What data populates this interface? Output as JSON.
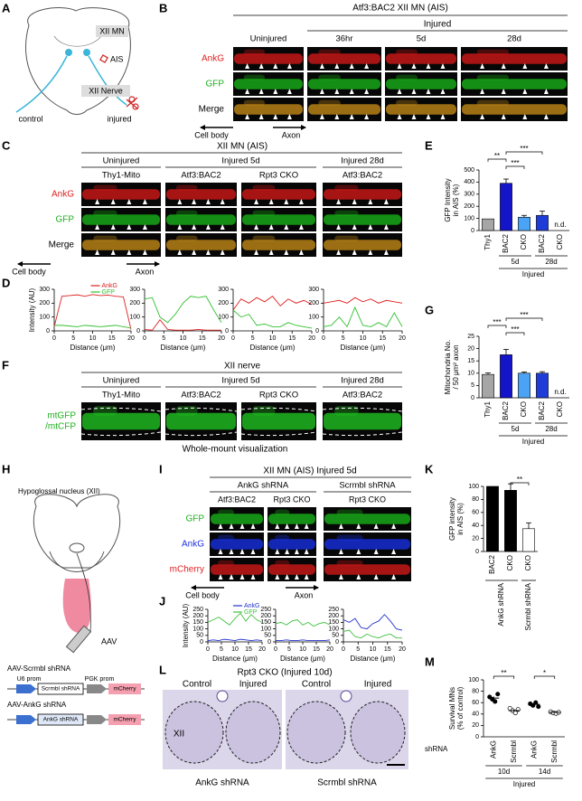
{
  "panels": {
    "A": {
      "letter": "A",
      "xii_mn": "XII MN",
      "ais": "AIS",
      "xii_nerve": "XII Nerve",
      "control": "control",
      "injured": "injured"
    },
    "B": {
      "letter": "B",
      "title": "Atf3:BAC2 XII MN (AIS)",
      "group": "Injured",
      "columns": [
        "Uninjured",
        "36hr",
        "5d",
        "28d"
      ],
      "rows": [
        "AnkG",
        "GFP",
        "Merge"
      ],
      "cell_body": "Cell body",
      "axon": "Axon"
    },
    "C": {
      "letter": "C",
      "title": "XII MN (AIS)",
      "groups": [
        "Uninjured",
        "Injured 5d",
        "Injured 28d"
      ],
      "columns": [
        "Thy1-Mito",
        "Atf3:BAC2",
        "Rpt3 CKO",
        "Atf3:BAC2"
      ],
      "rows": [
        "AnkG",
        "GFP",
        "Merge"
      ],
      "cell_body": "Cell body",
      "axon": "Axon"
    },
    "D": {
      "letter": "D"
    },
    "E": {
      "letter": "E"
    },
    "F": {
      "letter": "F",
      "title": "XII nerve",
      "groups": [
        "Uninjured",
        "Injured 5d",
        "Injured 28d"
      ],
      "columns": [
        "Thy1-Mito",
        "Atf3:BAC2",
        "Rpt3 CKO",
        "Atf3:BAC2"
      ],
      "row": [
        "mtGFP",
        "/mtCFP"
      ],
      "caption": "Whole-mount visualization"
    },
    "G": {
      "letter": "G"
    },
    "H": {
      "letter": "H",
      "nucleus": "Hypoglossal nucleus (XII)",
      "aav": "AAV",
      "constructs": [
        {
          "name": "AAV-Scrmbl shRNA",
          "promoters": [
            "U6 prom",
            "PGK prom"
          ],
          "insert": "Scrmbl shRNA",
          "reporter": "mCherry"
        },
        {
          "name": "AAV-AnkG shRNA",
          "insert": "AnkG shRNA",
          "reporter": "mCherry"
        }
      ]
    },
    "I": {
      "letter": "I",
      "title": "XII MN (AIS) Injured 5d",
      "groups": [
        "AnkG shRNA",
        "Scrmbl shRNA"
      ],
      "columns": [
        "Atf3:BAC2",
        "Rpt3 CKO",
        "Rpt3 CKO"
      ],
      "rows": [
        "GFP",
        "AnkG",
        "mCherry"
      ],
      "cell_body": "Cell body",
      "axon": "Axon"
    },
    "J": {
      "letter": "J"
    },
    "K": {
      "letter": "K"
    },
    "L": {
      "letter": "L",
      "title": "Rpt3 CKO (Injured 10d)",
      "columns": [
        "Control",
        "Injured",
        "Control",
        "Injured"
      ],
      "region": "XII",
      "groups": [
        "AnkG shRNA",
        "Scrmbl shRNA"
      ]
    },
    "M": {
      "letter": "M"
    }
  },
  "chart_data": [
    {
      "type": "line",
      "ylabel": "Intensity (AU)",
      "xlabel": "Distance (μm)",
      "legend": true,
      "x": [
        0,
        2,
        4,
        6,
        8,
        10,
        12,
        14,
        16,
        18,
        20
      ],
      "xlim": [
        0,
        20
      ],
      "xticks": [
        0,
        5,
        10,
        15,
        20
      ],
      "ylim": [
        0,
        300
      ],
      "yticks": [
        0,
        100,
        200,
        300
      ],
      "series": [
        {
          "name": "AnkG",
          "color": "#e02020",
          "values": [
            30,
            250,
            255,
            260,
            250,
            262,
            255,
            258,
            250,
            245,
            10
          ]
        },
        {
          "name": "GFP",
          "color": "#30c030",
          "values": [
            40,
            40,
            35,
            30,
            40,
            35,
            30,
            35,
            40,
            30,
            20
          ]
        }
      ]
    },
    {
      "type": "line",
      "xlabel": "Distance (μm)",
      "x": [
        0,
        2,
        4,
        6,
        8,
        10,
        12,
        14,
        16,
        18,
        20
      ],
      "xlim": [
        0,
        20
      ],
      "xticks": [
        0,
        5,
        10,
        15,
        20
      ],
      "ylim": [
        0,
        300
      ],
      "yticks": [
        0,
        100,
        200,
        300
      ],
      "series": [
        {
          "color": "#e02020",
          "values": [
            10,
            5,
            80,
            10,
            5,
            5,
            5,
            10,
            5,
            5,
            5
          ]
        },
        {
          "color": "#30c030",
          "values": [
            230,
            240,
            100,
            60,
            120,
            200,
            250,
            240,
            250,
            150,
            60
          ]
        }
      ]
    },
    {
      "type": "line",
      "xlabel": "Distance (μm)",
      "x": [
        0,
        2,
        4,
        6,
        8,
        10,
        12,
        14,
        16,
        18,
        20
      ],
      "xlim": [
        0,
        20
      ],
      "xticks": [
        0,
        5,
        10,
        15,
        20
      ],
      "ylim": [
        0,
        300
      ],
      "yticks": [
        0,
        100,
        200,
        300
      ],
      "series": [
        {
          "color": "#e02020",
          "values": [
            150,
            230,
            200,
            240,
            210,
            250,
            180,
            230,
            200,
            220,
            190
          ]
        },
        {
          "color": "#30c030",
          "values": [
            150,
            100,
            120,
            40,
            50,
            30,
            30,
            60,
            40,
            30,
            20
          ]
        }
      ]
    },
    {
      "type": "line",
      "xlabel": "Distance (μm)",
      "x": [
        0,
        2,
        4,
        6,
        8,
        10,
        12,
        14,
        16,
        18,
        20
      ],
      "xlim": [
        0,
        20
      ],
      "xticks": [
        0,
        5,
        10,
        15,
        20
      ],
      "ylim": [
        0,
        300
      ],
      "yticks": [
        0,
        100,
        200,
        300
      ],
      "series": [
        {
          "color": "#e02020",
          "values": [
            200,
            210,
            220,
            200,
            240,
            210,
            230,
            200,
            220,
            210,
            200
          ]
        },
        {
          "color": "#30c030",
          "values": [
            30,
            40,
            100,
            30,
            170,
            40,
            30,
            60,
            30,
            130,
            30
          ]
        }
      ]
    },
    {
      "type": "bar",
      "ylabel": [
        "GFP Intensity",
        "in AIS (%)"
      ],
      "categories": [
        "Thy1",
        "BAC2",
        "CKO",
        "BAC2",
        "CKO"
      ],
      "values": [
        96,
        390,
        110,
        125,
        null
      ],
      "errors": [
        null,
        35,
        15,
        35,
        null
      ],
      "colors": [
        "#a6a6a6",
        "#1414c8",
        "#4aa3f5",
        "#1f3dd6",
        "#1f3dd6"
      ],
      "ylim": [
        0,
        500
      ],
      "yticks": [
        0,
        100,
        200,
        300,
        400,
        500
      ],
      "group_labels": [
        "5d",
        "28d"
      ],
      "super_label": "Injured",
      "annotations": [
        "**",
        "***",
        "***",
        "n.d."
      ]
    },
    {
      "type": "bar",
      "ylabel": [
        "Mitochondria No.",
        "/ 50 μm² axon"
      ],
      "categories": [
        "Thy1",
        "BAC2",
        "CKO",
        "BAC2",
        "CKO"
      ],
      "values": [
        9.5,
        17.5,
        10,
        10,
        null
      ],
      "errors": [
        0.6,
        2.2,
        0.5,
        0.6,
        null
      ],
      "colors": [
        "#a6a6a6",
        "#1414c8",
        "#4aa3f5",
        "#1f3dd6",
        "#1f3dd6"
      ],
      "ylim": [
        0,
        25
      ],
      "yticks": [
        0,
        5,
        10,
        15,
        20,
        25
      ],
      "group_labels": [
        "5d",
        "28d"
      ],
      "super_label": "Injured",
      "annotations": [
        "***",
        "***",
        "***",
        "n.d."
      ]
    },
    {
      "type": "line",
      "ylabel": "Intensity (AU)",
      "xlabel": "Distance (μm)",
      "legend": true,
      "x": [
        0,
        2,
        4,
        6,
        8,
        10,
        12,
        14,
        16,
        18,
        20
      ],
      "xlim": [
        0,
        20
      ],
      "xticks": [
        0,
        5,
        10,
        15,
        20
      ],
      "ylim": [
        0,
        250
      ],
      "yticks": [
        0,
        50,
        100,
        150,
        200,
        250
      ],
      "series": [
        {
          "name": "AnkG",
          "color": "#2030d0",
          "values": [
            10,
            15,
            10,
            20,
            15,
            10,
            20,
            15,
            10,
            15,
            10
          ]
        },
        {
          "name": "GFP",
          "color": "#40c040",
          "values": [
            150,
            170,
            190,
            160,
            130,
            180,
            220,
            160,
            210,
            170,
            150
          ]
        }
      ]
    },
    {
      "type": "line",
      "xlabel": "Distance (μm)",
      "x": [
        0,
        2,
        4,
        6,
        8,
        10,
        12,
        14,
        16,
        18,
        20
      ],
      "xlim": [
        0,
        20
      ],
      "xticks": [
        0,
        5,
        10,
        15,
        20
      ],
      "ylim": [
        0,
        250
      ],
      "yticks": [
        0,
        50,
        100,
        150,
        200,
        250
      ],
      "series": [
        {
          "color": "#2030d0",
          "values": [
            10,
            10,
            15,
            10,
            10,
            15,
            10,
            10,
            10,
            10,
            15
          ]
        },
        {
          "color": "#40c040",
          "values": [
            140,
            150,
            130,
            160,
            170,
            130,
            150,
            120,
            140,
            150,
            130
          ]
        }
      ]
    },
    {
      "type": "line",
      "xlabel": "Distance (μm)",
      "x": [
        0,
        2,
        4,
        6,
        8,
        10,
        12,
        14,
        16,
        18,
        20
      ],
      "xlim": [
        0,
        20
      ],
      "xticks": [
        0,
        5,
        10,
        15,
        20
      ],
      "ylim": [
        0,
        250
      ],
      "yticks": [
        0,
        50,
        100,
        150,
        200,
        250
      ],
      "series": [
        {
          "color": "#2030d0",
          "values": [
            170,
            150,
            180,
            110,
            100,
            140,
            160,
            210,
            160,
            100,
            90
          ]
        },
        {
          "color": "#40c040",
          "values": [
            80,
            90,
            40,
            30,
            60,
            40,
            30,
            50,
            60,
            30,
            30
          ]
        }
      ]
    },
    {
      "type": "bar",
      "ylabel": [
        "GFP intensity",
        "in AIS (%)"
      ],
      "categories": [
        "BAC2",
        "CKO",
        "CKO"
      ],
      "values": [
        100,
        94,
        35
      ],
      "errors": [
        null,
        10,
        9
      ],
      "colors": [
        "#000000",
        "#000000",
        "#ffffff"
      ],
      "ylim": [
        0,
        100
      ],
      "yticks": [
        0,
        20,
        40,
        60,
        80,
        100
      ],
      "group_labels": [
        "AnkG shRNA",
        "Scrmbl shRNA"
      ],
      "annotations": [
        "**"
      ]
    },
    {
      "type": "dotplot",
      "ylabel": [
        "Survival MNs",
        "(% of control)"
      ],
      "categories": [
        "AnkG",
        "Scrmbl",
        "AnkG",
        "Scrmbl"
      ],
      "points": [
        [
          70,
          66,
          62,
          75
        ],
        [
          50,
          46,
          42,
          48
        ],
        [
          58,
          55,
          60,
          53
        ],
        [
          44,
          42,
          41,
          43
        ]
      ],
      "values": [
        68,
        46,
        57,
        43
      ],
      "errors": [
        3,
        2,
        2,
        1
      ],
      "colors": [
        "#000000",
        "#ffffff",
        "#000000",
        "#ffffff"
      ],
      "ylim": [
        0,
        100
      ],
      "yticks": [
        0,
        20,
        40,
        60,
        80,
        100
      ],
      "group_labels": [
        "10d",
        "14d"
      ],
      "super_label": "Injured",
      "row_label": "shRNA",
      "annotations": [
        "**",
        "*"
      ]
    }
  ]
}
